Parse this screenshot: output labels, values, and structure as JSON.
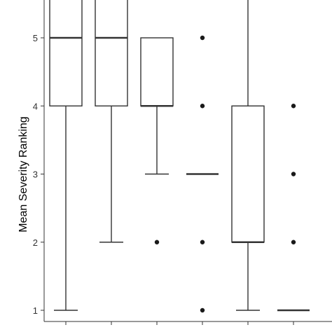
{
  "chart_data": {
    "type": "box",
    "ylabel": "Mean Severity Ranking",
    "ylim": [
      0.85,
      5.55
    ],
    "yticks": [
      1,
      2,
      3,
      4,
      5
    ],
    "grid": false,
    "legend": "none",
    "colors": {
      "box_fill": "#ffffff",
      "stroke": "#333333",
      "point": "#1a1a1a"
    },
    "boxes": [
      {
        "q1": 4,
        "median": 5,
        "q3": 5.6,
        "whisker_low": 1,
        "whisker_high": 5.6,
        "outliers": []
      },
      {
        "q1": 4,
        "median": 5,
        "q3": 5.6,
        "whisker_low": 2,
        "whisker_high": 5.6,
        "outliers": []
      },
      {
        "q1": 4,
        "median": 4,
        "q3": 5,
        "whisker_low": 3,
        "whisker_high": 5,
        "outliers": [
          2
        ]
      },
      {
        "q1": 3,
        "median": 3,
        "q3": 3,
        "whisker_low": 3,
        "whisker_high": 3,
        "outliers": [
          5,
          4,
          2,
          1
        ]
      },
      {
        "q1": 2,
        "median": 2,
        "q3": 4,
        "whisker_low": 1,
        "whisker_high": 5.6,
        "outliers": []
      },
      {
        "q1": 1,
        "median": 1,
        "q3": 1,
        "whisker_low": 1,
        "whisker_high": 1,
        "outliers": [
          4,
          3,
          2
        ]
      }
    ]
  }
}
